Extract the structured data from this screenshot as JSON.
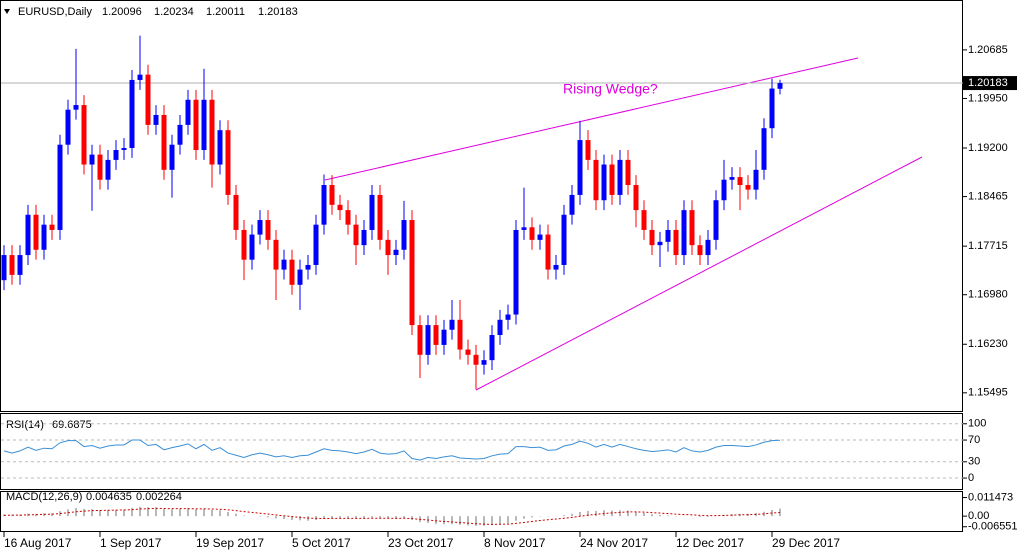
{
  "chart_data": [
    {
      "type": "candlestick",
      "title": "EURUSD,Daily",
      "categories": [
        "16 Aug 2017",
        null,
        null,
        null,
        null,
        null,
        null,
        null,
        null,
        null,
        null,
        null,
        "1 Sep 2017",
        null,
        null,
        null,
        null,
        null,
        null,
        null,
        null,
        null,
        null,
        null,
        "19 Sep 2017",
        null,
        null,
        null,
        null,
        null,
        null,
        null,
        null,
        null,
        null,
        null,
        "5 Oct 2017",
        null,
        null,
        null,
        null,
        null,
        null,
        null,
        null,
        null,
        null,
        null,
        "23 Oct 2017",
        null,
        null,
        null,
        null,
        null,
        null,
        null,
        null,
        null,
        null,
        null,
        "8 Nov 2017",
        null,
        null,
        null,
        null,
        null,
        null,
        null,
        null,
        null,
        null,
        null,
        "24 Nov 2017",
        null,
        null,
        null,
        null,
        null,
        null,
        null,
        null,
        null,
        null,
        null,
        "12 Dec 2017",
        null,
        null,
        null,
        null,
        null,
        null,
        null,
        null,
        null,
        null,
        null,
        "29 Dec 2017",
        null
      ],
      "open": [
        1.172,
        1.1758,
        1.1728,
        1.1758,
        1.1819,
        1.1766,
        1.1804,
        1.1796,
        1.1925,
        1.1978,
        1.1985,
        1.1895,
        1.191,
        1.1872,
        1.1902,
        1.1917,
        1.192,
        1.2023,
        1.2031,
        1.1955,
        1.197,
        1.1887,
        1.1925,
        1.1955,
        1.1993,
        1.1917,
        1.1993,
        1.1895,
        1.1947,
        1.1849,
        1.1796,
        1.1751,
        1.1789,
        1.1811,
        1.1781,
        1.1736,
        1.1751,
        1.1713,
        1.1736,
        1.1743,
        1.1804,
        1.1864,
        1.1834,
        1.1826,
        1.1804,
        1.1773,
        1.1796,
        1.1849,
        1.1781,
        1.1758,
        1.1766,
        1.1811,
        1.1652,
        1.1607,
        1.1652,
        1.1622,
        1.1645,
        1.166,
        1.1615,
        1.1607,
        1.1592,
        1.1599,
        1.1637,
        1.166,
        1.1668,
        1.1796,
        1.18,
        1.1781,
        1.1789,
        1.1736,
        1.1743,
        1.1819,
        1.1849,
        1.1932,
        1.1902,
        1.1841,
        1.1895,
        1.1849,
        1.1902,
        1.1864,
        1.1826,
        1.1796,
        1.1773,
        1.1778,
        1.1796,
        1.1758,
        1.1826,
        1.1773,
        1.1758,
        1.1781,
        1.1841,
        1.1872,
        1.1876,
        1.1864,
        1.1857,
        1.1887,
        1.195,
        1.20096
      ],
      "high": [
        1.1773,
        1.1773,
        1.1773,
        1.1834,
        1.1834,
        1.1819,
        1.1819,
        1.194,
        1.1993,
        1.207,
        1.2,
        1.1925,
        1.1925,
        1.1917,
        1.1932,
        1.1935,
        1.2038,
        1.209,
        1.2046,
        1.1985,
        1.1985,
        1.194,
        1.197,
        1.2008,
        1.2008,
        1.204,
        1.2008,
        1.1962,
        1.1962,
        1.1864,
        1.1811,
        1.1804,
        1.1826,
        1.1826,
        1.1796,
        1.1766,
        1.1766,
        1.1751,
        1.1758,
        1.1819,
        1.188,
        1.1879,
        1.1849,
        1.1841,
        1.1819,
        1.1811,
        1.1864,
        1.1864,
        1.1796,
        1.1781,
        1.184,
        1.1826,
        1.1667,
        1.1667,
        1.1667,
        1.166,
        1.169,
        1.169,
        1.163,
        1.1622,
        1.1614,
        1.1652,
        1.1675,
        1.1683,
        1.1811,
        1.186,
        1.1815,
        1.1804,
        1.1804,
        1.1758,
        1.1834,
        1.1864,
        1.1961,
        1.1947,
        1.1917,
        1.191,
        1.191,
        1.1917,
        1.1917,
        1.1879,
        1.1841,
        1.1811,
        1.1793,
        1.1811,
        1.1811,
        1.1841,
        1.1841,
        1.1788,
        1.1796,
        1.1856,
        1.1902,
        1.1891,
        1.1891,
        1.1879,
        1.1917,
        1.1965,
        1.2025,
        1.20234
      ],
      "low": [
        1.1705,
        1.1713,
        1.1713,
        1.1743,
        1.1751,
        1.1751,
        1.1781,
        1.1781,
        1.191,
        1.1963,
        1.188,
        1.1825,
        1.1857,
        1.1857,
        1.1887,
        1.1902,
        1.1905,
        1.2008,
        1.194,
        1.194,
        1.1872,
        1.1845,
        1.191,
        1.194,
        1.1902,
        1.1902,
        1.186,
        1.188,
        1.1834,
        1.1781,
        1.172,
        1.1736,
        1.1774,
        1.1766,
        1.169,
        1.1721,
        1.1698,
        1.1675,
        1.1721,
        1.1728,
        1.1789,
        1.1819,
        1.1811,
        1.1789,
        1.1743,
        1.1758,
        1.1781,
        1.1766,
        1.1728,
        1.1743,
        1.1751,
        1.1637,
        1.1572,
        1.1592,
        1.1607,
        1.1607,
        1.163,
        1.16,
        1.1592,
        1.1555,
        1.1577,
        1.1584,
        1.1622,
        1.1645,
        1.1653,
        1.1781,
        1.1766,
        1.1766,
        1.1721,
        1.1721,
        1.1728,
        1.1804,
        1.1834,
        1.1887,
        1.1826,
        1.1826,
        1.1834,
        1.1834,
        1.1849,
        1.18,
        1.1781,
        1.1758,
        1.174,
        1.1763,
        1.1743,
        1.1743,
        1.1758,
        1.1743,
        1.1743,
        1.1766,
        1.1826,
        1.1857,
        1.1826,
        1.1842,
        1.1842,
        1.1872,
        1.1935,
        1.20011
      ],
      "close": [
        1.1758,
        1.1728,
        1.1758,
        1.1819,
        1.1766,
        1.1804,
        1.1796,
        1.1925,
        1.1978,
        1.1985,
        1.1895,
        1.191,
        1.1872,
        1.1902,
        1.1917,
        1.192,
        1.2023,
        1.2031,
        1.1955,
        1.197,
        1.1887,
        1.1925,
        1.1955,
        1.1993,
        1.1917,
        1.1993,
        1.1895,
        1.1947,
        1.1849,
        1.1796,
        1.1751,
        1.1789,
        1.1811,
        1.1781,
        1.1736,
        1.1751,
        1.1713,
        1.1736,
        1.1743,
        1.1804,
        1.1864,
        1.1834,
        1.1826,
        1.1804,
        1.1773,
        1.1796,
        1.1849,
        1.1781,
        1.1758,
        1.1766,
        1.1811,
        1.1652,
        1.1607,
        1.1652,
        1.1622,
        1.1645,
        1.166,
        1.1615,
        1.1607,
        1.1592,
        1.1599,
        1.1637,
        1.166,
        1.1668,
        1.1796,
        1.18,
        1.1781,
        1.1789,
        1.1736,
        1.1743,
        1.1819,
        1.1849,
        1.1932,
        1.1902,
        1.1841,
        1.1895,
        1.1849,
        1.1902,
        1.1864,
        1.1826,
        1.1796,
        1.1773,
        1.1778,
        1.1796,
        1.1758,
        1.1826,
        1.1773,
        1.1758,
        1.1781,
        1.1841,
        1.1872,
        1.1876,
        1.1864,
        1.1857,
        1.1887,
        1.195,
        1.201,
        1.20183
      ],
      "up_color": "#0000ff",
      "down_color": "#ff0000",
      "ylim": [
        1.1522,
        1.2144
      ],
      "yticks": [
        1.20685,
        {
          "value": 1.1995,
          "label": "1.19950"
        },
        {
          "value": 1.192,
          "label": "1.19200"
        },
        1.18465,
        1.17715,
        {
          "value": 1.1698,
          "label": "1.16980"
        },
        {
          "value": 1.1623,
          "label": "1.16230"
        },
        1.15495
      ],
      "annotation": "Rising Wedge?"
    },
    {
      "type": "line",
      "title": "RSI(14)",
      "color": "#3a8fd6",
      "values": [
        50,
        46,
        50,
        57,
        51,
        55,
        54,
        65,
        69,
        69,
        58,
        60,
        55,
        59,
        61,
        61,
        70,
        70,
        60,
        62,
        52,
        56,
        59,
        63,
        54,
        62,
        51,
        56,
        46,
        42,
        38,
        43,
        46,
        43,
        39,
        41,
        38,
        41,
        42,
        48,
        54,
        51,
        50,
        48,
        45,
        48,
        53,
        46,
        44,
        45,
        50,
        36,
        33,
        38,
        36,
        39,
        41,
        37,
        36,
        35,
        36,
        41,
        44,
        45,
        58,
        58,
        56,
        57,
        51,
        52,
        59,
        62,
        68,
        64,
        57,
        62,
        57,
        62,
        58,
        54,
        51,
        49,
        50,
        52,
        48,
        56,
        50,
        48,
        51,
        57,
        60,
        60,
        59,
        58,
        61,
        66,
        69,
        69.6875
      ],
      "ylim": [
        -22,
        118
      ],
      "yticks": [
        100,
        70,
        30,
        0
      ]
    },
    {
      "type": "macd",
      "title": "MACD(12,26,9)",
      "histogram_color": "#b8b8b8",
      "signal_color": "#d00000",
      "histogram": [
        0.001,
        0.0008,
        0.0009,
        0.0015,
        0.0014,
        0.0017,
        0.0018,
        0.003,
        0.0042,
        0.005,
        0.0045,
        0.0043,
        0.0038,
        0.0038,
        0.0039,
        0.004,
        0.005,
        0.0058,
        0.0055,
        0.0054,
        0.0045,
        0.0043,
        0.0044,
        0.0048,
        0.0042,
        0.0046,
        0.0038,
        0.0036,
        0.0026,
        0.0015,
        0.0004,
        0.0,
        -0.0002,
        -0.0007,
        -0.0014,
        -0.0018,
        -0.0024,
        -0.0026,
        -0.0028,
        -0.0024,
        -0.0016,
        -0.0013,
        -0.0012,
        -0.0013,
        -0.0016,
        -0.0015,
        -0.0009,
        -0.0011,
        -0.0015,
        -0.0016,
        -0.0012,
        -0.0024,
        -0.0037,
        -0.0042,
        -0.0048,
        -0.005,
        -0.005,
        -0.0054,
        -0.0057,
        -0.006,
        -0.006,
        -0.0056,
        -0.005,
        -0.0044,
        -0.0028,
        -0.0016,
        -0.0008,
        -0.0002,
        -0.0002,
        -0.0001,
        0.0006,
        0.0014,
        0.0026,
        0.0032,
        0.0032,
        0.0036,
        0.0034,
        0.0036,
        0.0034,
        0.0028,
        0.002,
        0.0012,
        0.0007,
        0.0004,
        -0.0002,
        0.0002,
        -0.0001,
        -0.0005,
        -0.0004,
        0.0002,
        0.0008,
        0.0012,
        0.0014,
        0.0015,
        0.0019,
        0.0027,
        0.0038,
        0.004635
      ],
      "signal": [
        0.0005,
        0.0006,
        0.0006,
        0.0008,
        0.0009,
        0.0011,
        0.0012,
        0.0016,
        0.0021,
        0.0027,
        0.0031,
        0.0034,
        0.0035,
        0.0036,
        0.0037,
        0.0038,
        0.004,
        0.0044,
        0.0046,
        0.0048,
        0.0047,
        0.0046,
        0.0046,
        0.0046,
        0.0045,
        0.0045,
        0.0044,
        0.0042,
        0.0039,
        0.0034,
        0.0028,
        0.0023,
        0.0018,
        0.0013,
        0.0007,
        0.0002,
        -0.0003,
        -0.0008,
        -0.0012,
        -0.0014,
        -0.0015,
        -0.0014,
        -0.0014,
        -0.0014,
        -0.0014,
        -0.0014,
        -0.0013,
        -0.0013,
        -0.0013,
        -0.0014,
        -0.0013,
        -0.0015,
        -0.002,
        -0.0024,
        -0.0029,
        -0.0033,
        -0.0036,
        -0.004,
        -0.0043,
        -0.0047,
        -0.0049,
        -0.0051,
        -0.005,
        -0.0049,
        -0.0045,
        -0.0039,
        -0.0033,
        -0.0027,
        -0.0022,
        -0.0018,
        -0.0013,
        -0.0008,
        -0.0001,
        0.0006,
        0.0011,
        0.0016,
        0.002,
        0.0023,
        0.0026,
        0.0026,
        0.0025,
        0.0022,
        0.0019,
        0.0016,
        0.0012,
        0.001,
        0.0008,
        0.0005,
        0.0003,
        0.0003,
        0.0004,
        0.0006,
        0.0008,
        0.0009,
        0.0011,
        0.0014,
        0.0019,
        0.002264
      ],
      "ylim": [
        -0.0098,
        0.0149
      ],
      "yticks": [
        0.011473,
        {
          "value": 0,
          "label": "0.00"
        },
        -0.006551
      ]
    }
  ]
}
